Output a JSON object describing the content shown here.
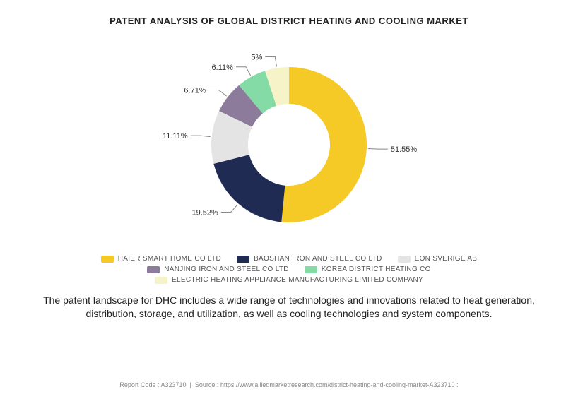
{
  "title": "PATENT ANALYSIS OF GLOBAL DISTRICT HEATING AND COOLING MARKET",
  "chart": {
    "type": "donut",
    "outer_radius": 110,
    "inner_radius": 58,
    "background_color": "#ffffff",
    "slices": [
      {
        "label": "HAIER SMART HOME CO LTD",
        "value": 51.55,
        "display": "51.55%",
        "color": "#f5c926"
      },
      {
        "label": "BAOSHAN IRON AND STEEL CO LTD",
        "value": 19.52,
        "display": "19.52%",
        "color": "#1f2b52"
      },
      {
        "label": "EON SVERIGE AB",
        "value": 11.11,
        "display": "11.11%",
        "color": "#e4e4e4"
      },
      {
        "label": "NANJING IRON AND STEEL CO LTD",
        "value": 6.71,
        "display": "6.71%",
        "color": "#8c7b9b"
      },
      {
        "label": "KOREA DISTRICT HEATING CO",
        "value": 6.11,
        "display": "6.11%",
        "color": "#84dba6"
      },
      {
        "label": "ELECTRIC HEATING APPLIANCE MANUFACTURING LIMITED COMPANY",
        "value": 5.0,
        "display": "5%",
        "color": "#f6f3c9"
      }
    ],
    "label_fontsize": 11,
    "legend_fontsize": 10
  },
  "description": "The patent landscape for DHC includes a wide range of technologies and innovations related to heat generation, distribution, storage, and utilization, as well as cooling technologies and system components.",
  "footer": {
    "report_code_label": "Report Code :",
    "report_code": "A323710",
    "source_label": "Source :",
    "source": "https://www.alliedmarketresearch.com/district-heating-and-cooling-market-A323710"
  }
}
